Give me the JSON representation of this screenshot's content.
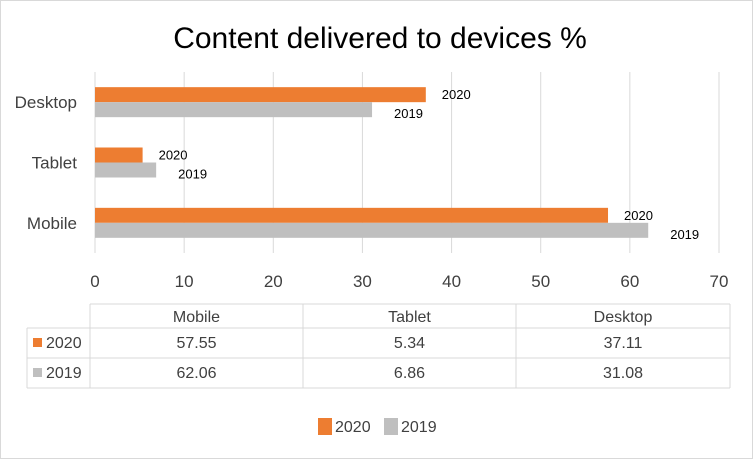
{
  "chart_data": {
    "type": "bar",
    "orientation": "horizontal",
    "title": "Content delivered to devices %",
    "categories": [
      "Mobile",
      "Tablet",
      "Desktop"
    ],
    "series": [
      {
        "name": "2020",
        "color": "#ed7d31",
        "values": [
          57.55,
          5.34,
          37.11
        ]
      },
      {
        "name": "2019",
        "color": "#bfbfbf",
        "values": [
          62.06,
          6.86,
          31.08
        ]
      }
    ],
    "xlim": [
      0,
      70
    ],
    "xticks": [
      0,
      10,
      20,
      30,
      40,
      50,
      60,
      70
    ],
    "grid": true,
    "data_labels": "series name",
    "data_table": true,
    "legend_position": "bottom"
  }
}
